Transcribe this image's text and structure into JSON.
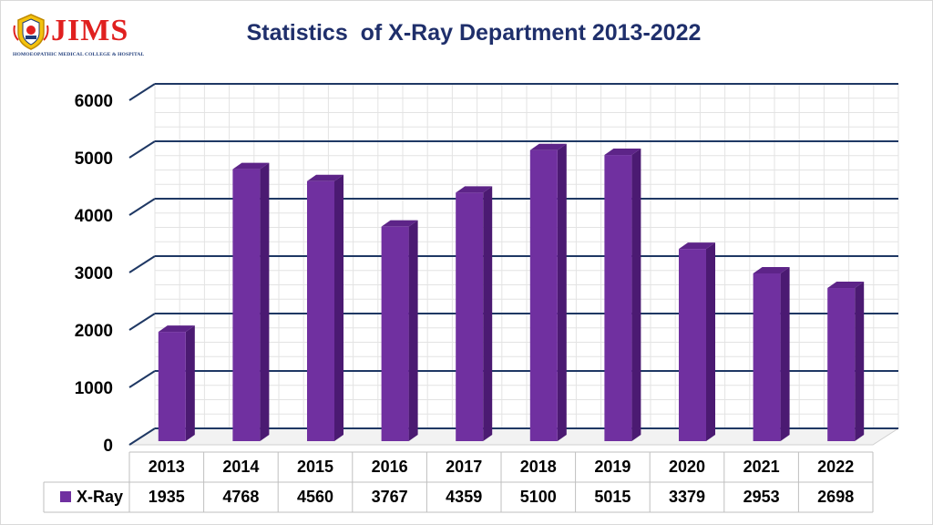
{
  "logo": {
    "name": "JIMS",
    "subtitle": "HOMOEOPATHIC MEDICAL COLLEGE & HOSPITAL"
  },
  "colors": {
    "bar_front": "#7030a0",
    "bar_side": "#4b1a72",
    "bar_top": "#5d2488",
    "gridline": "#1f3864",
    "title": "#1f2f6b",
    "logo_red": "#e0201f"
  },
  "chart_data": {
    "type": "bar",
    "title": "Statistics  of X-Ray Department 2013-2022",
    "categories": [
      "2013",
      "2014",
      "2015",
      "2016",
      "2017",
      "2018",
      "2019",
      "2020",
      "2021",
      "2022"
    ],
    "series": [
      {
        "name": "X-Ray",
        "values": [
          1935,
          4768,
          4560,
          3767,
          4359,
          5100,
          5015,
          3379,
          2953,
          2698
        ]
      }
    ],
    "ylim": [
      0,
      6000
    ],
    "yticks": [
      0,
      1000,
      2000,
      3000,
      4000,
      5000,
      6000
    ],
    "grid": true,
    "data_table": true,
    "legend": "data-table-left"
  }
}
